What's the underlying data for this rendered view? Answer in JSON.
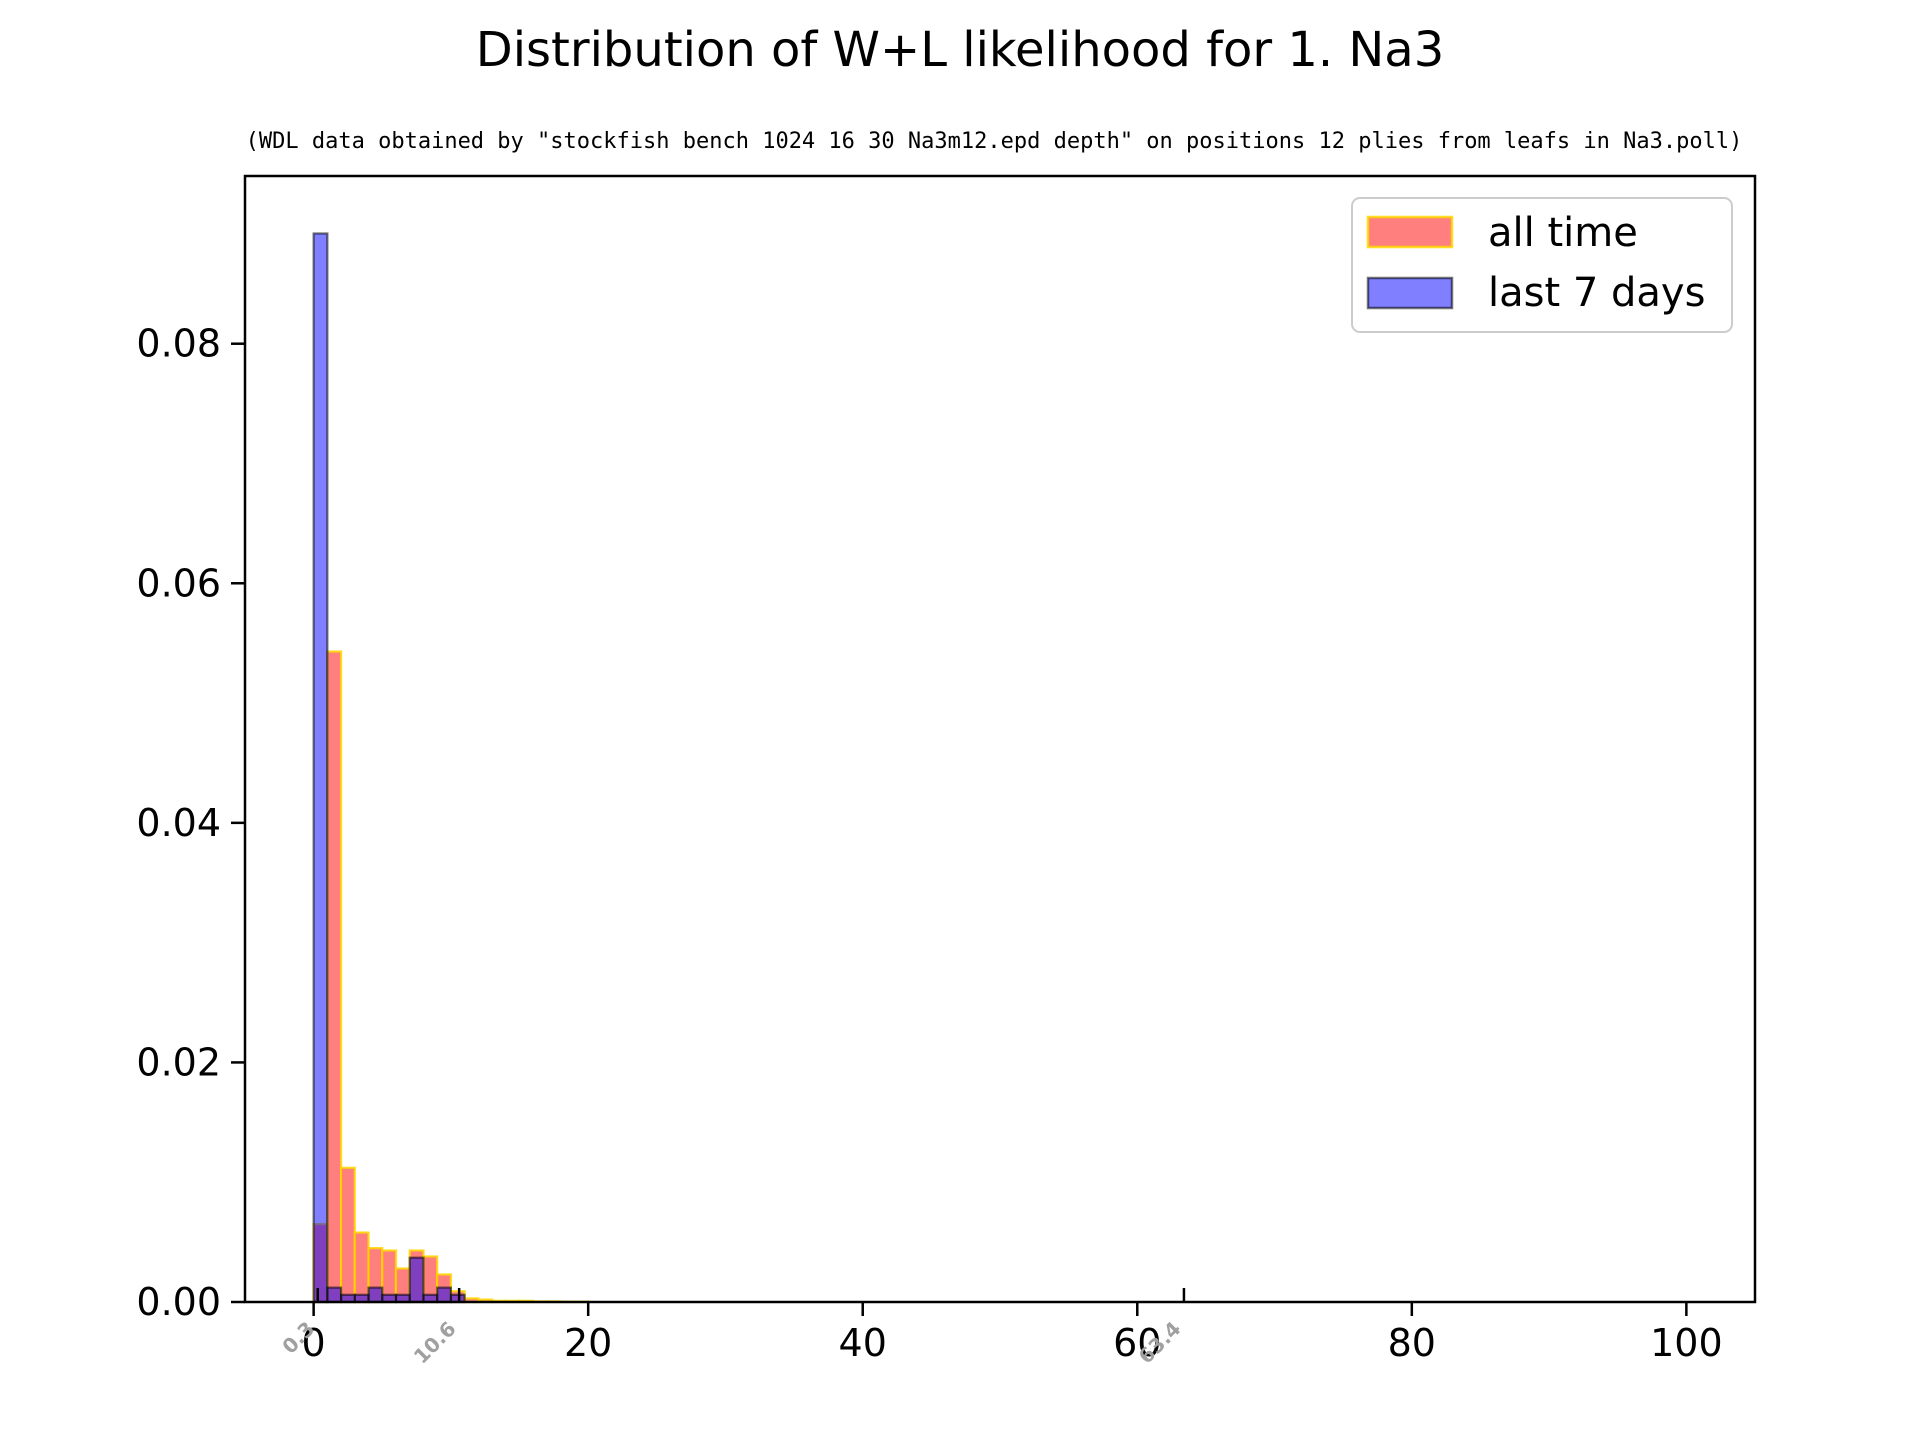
{
  "chart_data": {
    "type": "histogram",
    "title": "Distribution of W+L likelihood for 1. Na3",
    "subtitle": "(WDL data obtained by \"stockfish bench 1024 16 30 Na3m12.epd depth\" on positions 12 plies from leafs in Na3.poll)",
    "xlabel": "",
    "ylabel": "",
    "xlim": [
      -5,
      105
    ],
    "ylim": [
      0,
      0.094
    ],
    "bin_width": 1,
    "x_ticks": [
      0,
      20,
      40,
      60,
      80,
      100
    ],
    "x_tick_labels": [
      "0",
      "20",
      "40",
      "60",
      "80",
      "100"
    ],
    "y_ticks": [
      0,
      0.02,
      0.04,
      0.06,
      0.08
    ],
    "y_tick_labels": [
      "0.00",
      "0.02",
      "0.04",
      "0.06",
      "0.08"
    ],
    "markers": [
      {
        "x": 0.3,
        "label": "0.3"
      },
      {
        "x": 10.6,
        "label": "10.6"
      },
      {
        "x": 63.4,
        "label": "63.4"
      }
    ],
    "legend_position": "top-right",
    "series": [
      {
        "name": "all time",
        "fill": "#ff0000",
        "edge": "#ffd700",
        "alpha": 0.5,
        "bins": [
          {
            "x": 0,
            "value": 0.0065
          },
          {
            "x": 1,
            "value": 0.0543
          },
          {
            "x": 2,
            "value": 0.0112
          },
          {
            "x": 3,
            "value": 0.0058
          },
          {
            "x": 4,
            "value": 0.0045
          },
          {
            "x": 5,
            "value": 0.0043
          },
          {
            "x": 6,
            "value": 0.0028
          },
          {
            "x": 7,
            "value": 0.0043
          },
          {
            "x": 8,
            "value": 0.0038
          },
          {
            "x": 9,
            "value": 0.0023
          },
          {
            "x": 10,
            "value": 0.0009
          },
          {
            "x": 11,
            "value": 0.0003
          },
          {
            "x": 12,
            "value": 0.0002
          },
          {
            "x": 13,
            "value": 0.0001
          },
          {
            "x": 14,
            "value": 0.0001
          },
          {
            "x": 15,
            "value": 0.0001
          },
          {
            "x": 16,
            "value": 5e-05
          },
          {
            "x": 17,
            "value": 5e-05
          },
          {
            "x": 18,
            "value": 3e-05
          },
          {
            "x": 19,
            "value": 3e-05
          }
        ]
      },
      {
        "name": "last 7 days",
        "fill": "#0000ff",
        "edge": "#000000",
        "alpha": 0.5,
        "bins": [
          {
            "x": 0,
            "value": 0.0892
          },
          {
            "x": 1,
            "value": 0.0012
          },
          {
            "x": 2,
            "value": 0.0006
          },
          {
            "x": 3,
            "value": 0.0006
          },
          {
            "x": 4,
            "value": 0.0012
          },
          {
            "x": 5,
            "value": 0.0006
          },
          {
            "x": 6,
            "value": 0.0006
          },
          {
            "x": 7,
            "value": 0.0037
          },
          {
            "x": 8,
            "value": 0.0006
          },
          {
            "x": 9,
            "value": 0.0012
          },
          {
            "x": 10,
            "value": 0.0006
          }
        ]
      }
    ]
  }
}
